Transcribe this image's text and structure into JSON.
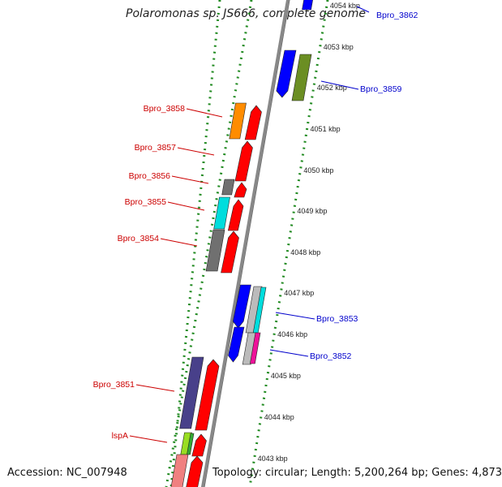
{
  "title": "Polaromonas sp. JS666, complete genome",
  "footer": {
    "accession": "Accession: NC_007948",
    "topology": "Topology: circular; Length: 5,200,264 bp; Genes: 4,873"
  },
  "colors": {
    "red": "#ff0000",
    "blue": "#0000ff",
    "olive": "#6b8e23",
    "orange": "#ff8c00",
    "gray": "#707070",
    "cyan": "#00dddd",
    "silver": "#bbbbbb",
    "magenta": "#ee1199",
    "slate": "#48408a",
    "lime": "#99dd22",
    "pink": "#f08080",
    "backbone": "#888888",
    "label_red": "#cc0000",
    "label_blue": "#0000cc",
    "dash_green": "#228b22"
  },
  "ticks": [
    "4054 kbp",
    "4053 kbp",
    "4052 kbp",
    "4051 kbp",
    "4050 kbp",
    "4049 kbp",
    "4048 kbp",
    "4047 kbp",
    "4046 kbp",
    "4045 kbp",
    "4044 kbp",
    "4043 kbp"
  ],
  "gene_labels": [
    {
      "text": "Bpro_3862",
      "color": "label_blue"
    },
    {
      "text": "Bpro_3859",
      "color": "label_blue"
    },
    {
      "text": "Bpro_3858",
      "color": "label_red"
    },
    {
      "text": "Bpro_3857",
      "color": "label_red"
    },
    {
      "text": "Bpro_3856",
      "color": "label_red"
    },
    {
      "text": "Bpro_3855",
      "color": "label_red"
    },
    {
      "text": "Bpro_3854",
      "color": "label_red"
    },
    {
      "text": "Bpro_3853",
      "color": "label_blue"
    },
    {
      "text": "Bpro_3852",
      "color": "label_blue"
    },
    {
      "text": "Bpro_3851",
      "color": "label_red"
    },
    {
      "text": "lspA",
      "color": "label_red"
    }
  ]
}
